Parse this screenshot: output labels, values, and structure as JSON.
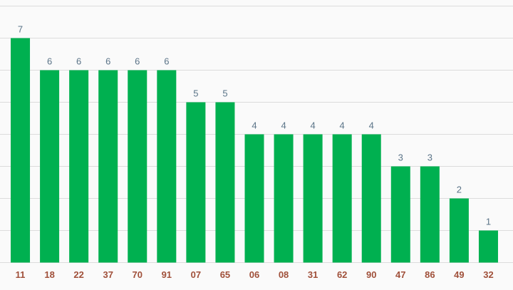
{
  "chart_data": {
    "type": "bar",
    "categories": [
      "11",
      "18",
      "22",
      "37",
      "70",
      "91",
      "07",
      "65",
      "06",
      "08",
      "31",
      "62",
      "90",
      "47",
      "86",
      "49",
      "32"
    ],
    "values": [
      7,
      6,
      6,
      6,
      6,
      6,
      5,
      5,
      4,
      4,
      4,
      4,
      4,
      3,
      3,
      2,
      1
    ],
    "title": "",
    "xlabel": "",
    "ylabel": "",
    "ylim": [
      0,
      8
    ],
    "grid": true,
    "data_labels": true,
    "colors": {
      "bar": "#00b050",
      "tick_label": "#a0503a",
      "value_label": "#5b7488",
      "grid": "#dcdcdc",
      "background": "#fafafa"
    }
  }
}
